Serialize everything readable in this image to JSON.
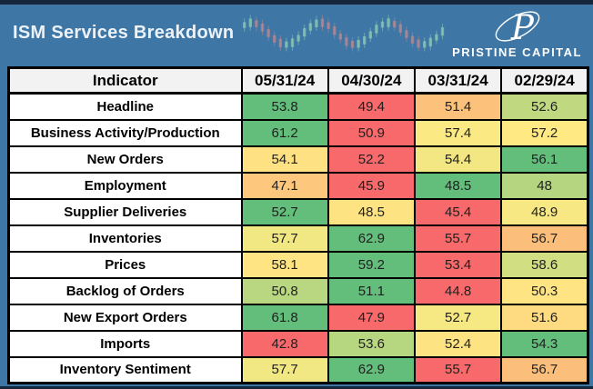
{
  "header": {
    "title": "ISM Services Breakdown",
    "brand_name": "PRISTINE CAPITAL",
    "brand_monogram": "P",
    "colors": {
      "banner_bg": "#3E76A5",
      "banner_text": "#ECF2F8",
      "top_bar": "#16263B",
      "candle_up": "#9AD6B4",
      "candle_down": "#D18A8A"
    }
  },
  "table": {
    "indicator_header": "Indicator",
    "date_headers": [
      "05/31/24",
      "04/30/24",
      "03/31/24",
      "02/29/24"
    ],
    "rows": [
      {
        "label": "Headline",
        "cells": [
          {
            "value": "53.8",
            "color": "#63BE7B"
          },
          {
            "value": "49.4",
            "color": "#F8696B"
          },
          {
            "value": "51.4",
            "color": "#FCC27C"
          },
          {
            "value": "52.6",
            "color": "#C0D981"
          }
        ]
      },
      {
        "label": "Business Activity/Production",
        "cells": [
          {
            "value": "61.2",
            "color": "#63BE7B"
          },
          {
            "value": "50.9",
            "color": "#F8696B"
          },
          {
            "value": "57.4",
            "color": "#FBEA84"
          },
          {
            "value": "57.2",
            "color": "#FEE983"
          }
        ]
      },
      {
        "label": "New Orders",
        "cells": [
          {
            "value": "54.1",
            "color": "#FEE182"
          },
          {
            "value": "52.2",
            "color": "#F8696B"
          },
          {
            "value": "54.4",
            "color": "#F2E783"
          },
          {
            "value": "56.1",
            "color": "#63BE7B"
          }
        ]
      },
      {
        "label": "Employment",
        "cells": [
          {
            "value": "47.1",
            "color": "#FDC77D"
          },
          {
            "value": "45.9",
            "color": "#F8696B"
          },
          {
            "value": "48.5",
            "color": "#63BE7B"
          },
          {
            "value": "48",
            "color": "#B5D580"
          }
        ]
      },
      {
        "label": "Supplier Deliveries",
        "cells": [
          {
            "value": "52.7",
            "color": "#63BE7B"
          },
          {
            "value": "48.5",
            "color": "#FEE382"
          },
          {
            "value": "45.4",
            "color": "#F8696B"
          },
          {
            "value": "48.9",
            "color": "#F7E883"
          }
        ]
      },
      {
        "label": "Inventories",
        "cells": [
          {
            "value": "57.7",
            "color": "#F1E783"
          },
          {
            "value": "62.9",
            "color": "#63BE7B"
          },
          {
            "value": "55.7",
            "color": "#F8696B"
          },
          {
            "value": "56.7",
            "color": "#FCBF7B"
          }
        ]
      },
      {
        "label": "Prices",
        "cells": [
          {
            "value": "58.1",
            "color": "#FEE482"
          },
          {
            "value": "59.2",
            "color": "#63BE7B"
          },
          {
            "value": "53.4",
            "color": "#F8696B"
          },
          {
            "value": "58.6",
            "color": "#D1DE81"
          }
        ]
      },
      {
        "label": "Backlog of Orders",
        "cells": [
          {
            "value": "50.8",
            "color": "#B8D780"
          },
          {
            "value": "51.1",
            "color": "#63BE7B"
          },
          {
            "value": "44.8",
            "color": "#F8696B"
          },
          {
            "value": "50.3",
            "color": "#FEE482"
          }
        ]
      },
      {
        "label": "New Export Orders",
        "cells": [
          {
            "value": "61.8",
            "color": "#63BE7B"
          },
          {
            "value": "47.9",
            "color": "#F8696B"
          },
          {
            "value": "52.7",
            "color": "#F6E883"
          },
          {
            "value": "51.6",
            "color": "#FEDA80"
          }
        ]
      },
      {
        "label": "Imports",
        "cells": [
          {
            "value": "42.8",
            "color": "#F8696B"
          },
          {
            "value": "53.6",
            "color": "#B7D680"
          },
          {
            "value": "52.4",
            "color": "#FEE382"
          },
          {
            "value": "54.3",
            "color": "#63BE7B"
          }
        ]
      },
      {
        "label": "Inventory Sentiment",
        "cells": [
          {
            "value": "57.7",
            "color": "#F1E783"
          },
          {
            "value": "62.9",
            "color": "#63BE7B"
          },
          {
            "value": "55.7",
            "color": "#F8696B"
          },
          {
            "value": "56.7",
            "color": "#FCBF7B"
          }
        ]
      }
    ]
  },
  "chart_data": {
    "type": "table",
    "title": "ISM Services Breakdown",
    "categories": [
      "05/31/24",
      "04/30/24",
      "03/31/24",
      "02/29/24"
    ],
    "series": [
      {
        "name": "Headline",
        "values": [
          53.8,
          49.4,
          51.4,
          52.6
        ]
      },
      {
        "name": "Business Activity/Production",
        "values": [
          61.2,
          50.9,
          57.4,
          57.2
        ]
      },
      {
        "name": "New Orders",
        "values": [
          54.1,
          52.2,
          54.4,
          56.1
        ]
      },
      {
        "name": "Employment",
        "values": [
          47.1,
          45.9,
          48.5,
          48
        ]
      },
      {
        "name": "Supplier Deliveries",
        "values": [
          52.7,
          48.5,
          45.4,
          48.9
        ]
      },
      {
        "name": "Inventories",
        "values": [
          57.7,
          62.9,
          55.7,
          56.7
        ]
      },
      {
        "name": "Prices",
        "values": [
          58.1,
          59.2,
          53.4,
          58.6
        ]
      },
      {
        "name": "Backlog of Orders",
        "values": [
          50.8,
          51.1,
          44.8,
          50.3
        ]
      },
      {
        "name": "New Export Orders",
        "values": [
          61.8,
          47.9,
          52.7,
          51.6
        ]
      },
      {
        "name": "Imports",
        "values": [
          42.8,
          53.6,
          52.4,
          54.3
        ]
      },
      {
        "name": "Inventory Sentiment",
        "values": [
          57.7,
          62.9,
          55.7,
          56.7
        ]
      }
    ],
    "color_scale": {
      "low": "#F8696B",
      "mid": "#FFEB84",
      "high": "#63BE7B"
    },
    "layout_hints": "conditional color scale applied per row; red=row min, green=row max"
  }
}
